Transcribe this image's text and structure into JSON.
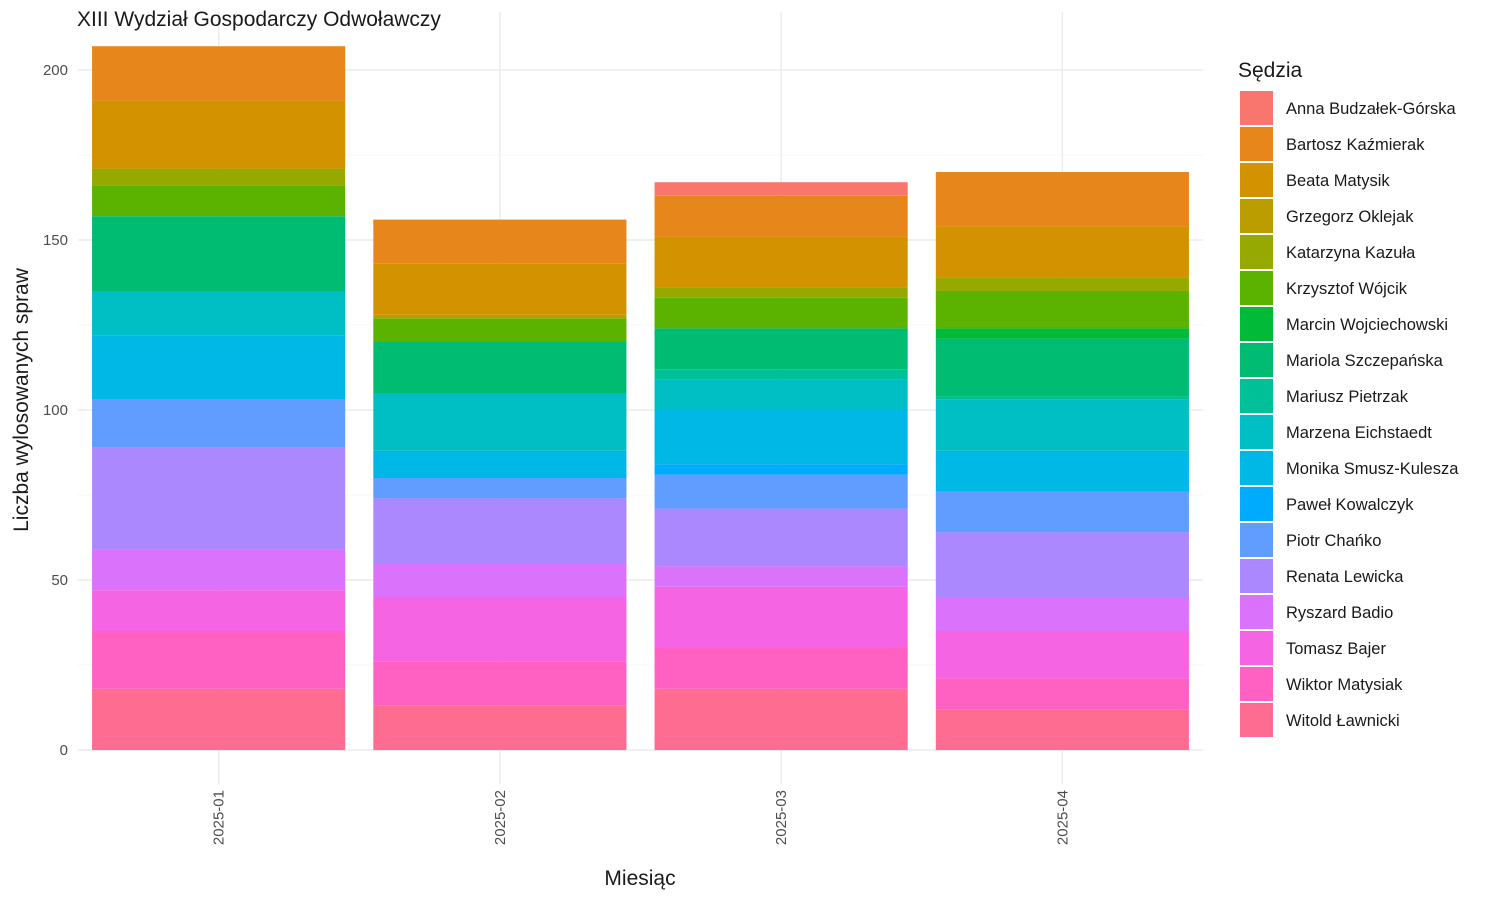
{
  "chart_data": {
    "type": "bar",
    "stacked": true,
    "title": "XIII Wydział Gospodarczy Odwoławczy",
    "xlabel": "Miesiąc",
    "ylabel": "Liczba wylosowanych spraw",
    "ylim": [
      0,
      210
    ],
    "yticks": [
      0,
      50,
      100,
      150,
      200
    ],
    "categories": [
      "2025-01",
      "2025-02",
      "2025-03",
      "2025-04"
    ],
    "legend_title": "Sędzia",
    "legend_position": "right",
    "grid": true,
    "series": [
      {
        "name": "Anna Budzałek-Górska",
        "color": "#F8766D",
        "values": [
          0,
          0,
          4,
          0
        ]
      },
      {
        "name": "Bartosz Kaźmierak",
        "color": "#E7861B",
        "values": [
          16,
          13,
          12,
          16
        ]
      },
      {
        "name": "Beata Matysik",
        "color": "#D39200",
        "values": [
          20,
          15,
          15,
          15
        ]
      },
      {
        "name": "Grzegorz Oklejak",
        "color": "#BB9D00",
        "values": [
          0,
          1,
          0,
          0
        ]
      },
      {
        "name": "Katarzyna Kazuła",
        "color": "#95A900",
        "values": [
          5,
          0,
          3,
          4
        ]
      },
      {
        "name": "Krzysztof Wójcik",
        "color": "#5BB300",
        "values": [
          9,
          7,
          9,
          11
        ]
      },
      {
        "name": "Marcin Wojciechowski",
        "color": "#00BA38",
        "values": [
          0,
          0,
          0,
          3
        ]
      },
      {
        "name": "Mariola Szczepańska",
        "color": "#00BC72",
        "values": [
          22,
          15,
          12,
          17
        ]
      },
      {
        "name": "Mariusz Pietrzak",
        "color": "#00C097",
        "values": [
          0,
          0,
          3,
          1
        ]
      },
      {
        "name": "Marzena Eichstaedt",
        "color": "#00BFC4",
        "values": [
          13,
          17,
          9,
          15
        ]
      },
      {
        "name": "Monika Smusz-Kulesza",
        "color": "#00B8E5",
        "values": [
          19,
          8,
          16,
          12
        ]
      },
      {
        "name": "Paweł Kowalczyk",
        "color": "#00ABFD",
        "values": [
          0,
          0,
          3,
          0
        ]
      },
      {
        "name": "Piotr Chańko",
        "color": "#619CFF",
        "values": [
          14,
          6,
          10,
          12
        ]
      },
      {
        "name": "Renata Lewicka",
        "color": "#AC88FF",
        "values": [
          30,
          19,
          17,
          19
        ]
      },
      {
        "name": "Ryszard Badio",
        "color": "#DB72FB",
        "values": [
          12,
          10,
          6,
          10
        ]
      },
      {
        "name": "Tomasz Bajer",
        "color": "#F565E3",
        "values": [
          12,
          19,
          18,
          14
        ]
      },
      {
        "name": "Wiktor Matysiak",
        "color": "#FF61C3",
        "values": [
          17,
          13,
          12,
          9
        ]
      },
      {
        "name": "Witold Ławnicki",
        "color": "#FF6C91",
        "values": [
          18,
          13,
          18,
          12
        ]
      }
    ]
  }
}
